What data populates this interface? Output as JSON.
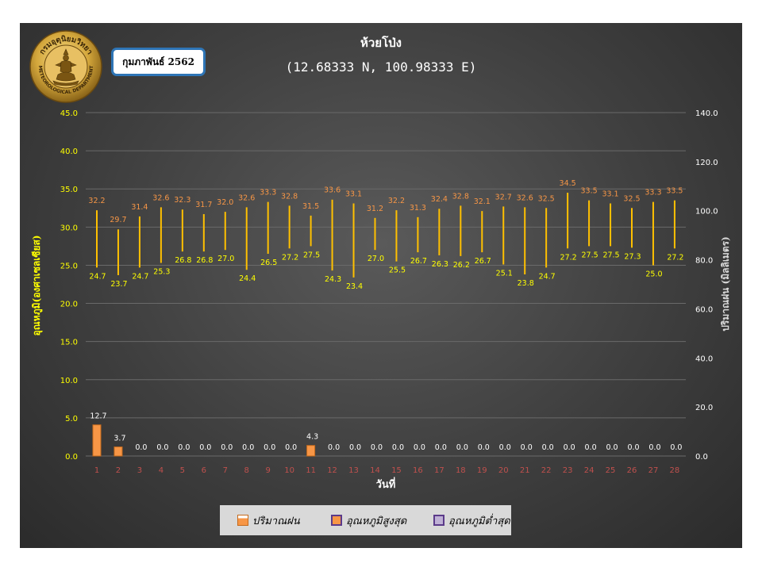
{
  "chart_data": {
    "type": "bar",
    "title": "ห้วยโป่ง",
    "subtitle": "(12.68333 N, 100.98333 E)",
    "month_label": "กุมภาพันธ์ 2562",
    "xlabel": "วันที่",
    "ylabel_left": "อุณหภูมิ(องศาเซลเซียส)",
    "ylabel_right": "ปริมาณฝน (มิลลิเมตร)",
    "categories": [
      "1",
      "2",
      "3",
      "4",
      "5",
      "6",
      "7",
      "8",
      "9",
      "10",
      "11",
      "12",
      "13",
      "14",
      "15",
      "16",
      "17",
      "18",
      "19",
      "20",
      "21",
      "22",
      "23",
      "24",
      "25",
      "26",
      "27",
      "28"
    ],
    "ylim_left": [
      0,
      45
    ],
    "ylim_right": [
      0,
      140
    ],
    "yticks_left": [
      "0.0",
      "5.0",
      "10.0",
      "15.0",
      "20.0",
      "25.0",
      "30.0",
      "35.0",
      "40.0",
      "45.0"
    ],
    "yticks_right": [
      "0.0",
      "20.0",
      "40.0",
      "60.0",
      "80.0",
      "100.0",
      "120.0",
      "140.0"
    ],
    "grid": true,
    "legend_position": "bottom",
    "series": [
      {
        "name": "ปริมาณฝน",
        "kind": "bar",
        "values": [
          12.7,
          3.7,
          0.0,
          0.0,
          0.0,
          0.0,
          0.0,
          0.0,
          0.0,
          0.0,
          4.3,
          0.0,
          0.0,
          0.0,
          0.0,
          0.0,
          0.0,
          0.0,
          0.0,
          0.0,
          0.0,
          0.0,
          0.0,
          0.0,
          0.0,
          0.0,
          0.0,
          0.0
        ]
      },
      {
        "name": "อุณหภูมิสูงสุด",
        "kind": "high",
        "values": [
          32.2,
          29.7,
          31.4,
          32.6,
          32.3,
          31.7,
          32.0,
          32.6,
          33.3,
          32.8,
          31.5,
          33.6,
          33.1,
          31.2,
          32.2,
          31.3,
          32.4,
          32.8,
          32.1,
          32.7,
          32.6,
          32.5,
          34.5,
          33.5,
          33.1,
          32.5,
          33.3,
          33.5
        ]
      },
      {
        "name": "อุณหภูมิต่ำสุด",
        "kind": "low",
        "values": [
          24.7,
          23.7,
          24.7,
          25.3,
          26.8,
          26.8,
          27.0,
          24.4,
          26.5,
          27.2,
          27.5,
          24.3,
          23.4,
          27.0,
          25.5,
          26.7,
          26.3,
          26.2,
          26.7,
          25.1,
          23.8,
          24.7,
          27.2,
          27.5,
          27.5,
          27.3,
          25.0,
          27.2
        ]
      }
    ]
  },
  "logo": {
    "name": "meteorological-department-seal",
    "text_top": "กรมอุตุนิยมวิทยา",
    "text_bottom": "METEOROLOGICAL DEPARTMENT"
  },
  "legend": {
    "items": [
      "ปริมาณฝน",
      "อุณหภูมิสูงสุด",
      "อุณหภูมิต่ำสุด"
    ]
  },
  "colors": {
    "plot_bg": "#404040",
    "rain_bar": "#f79646",
    "rain_label": "#ffffff",
    "range_line": "#ffc000",
    "max_label": "#f79646",
    "min_label": "#ffff00",
    "left_axis": "#ffff00",
    "right_axis": "#ffffff",
    "x_tick": "#c0504d",
    "title": "#ffffff",
    "month_border": "#2e75b6",
    "legend_bg": "#d9d9d9"
  }
}
